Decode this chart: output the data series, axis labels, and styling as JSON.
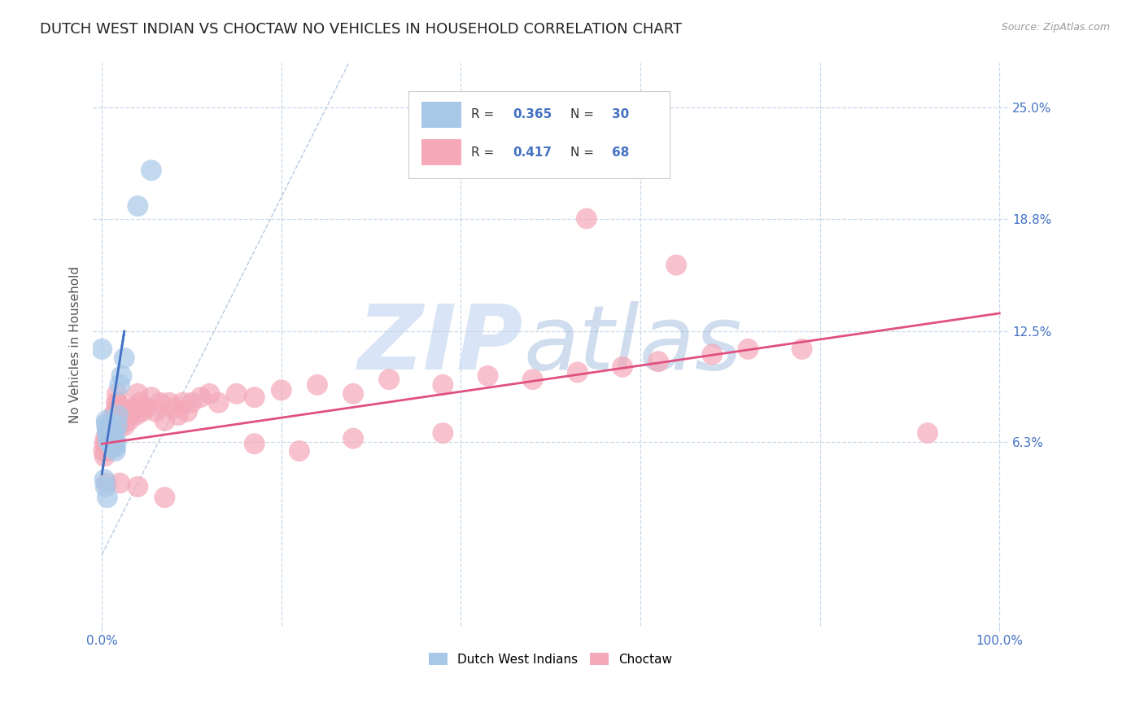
{
  "title": "DUTCH WEST INDIAN VS CHOCTAW NO VEHICLES IN HOUSEHOLD CORRELATION CHART",
  "source": "Source: ZipAtlas.com",
  "ylabel": "No Vehicles in Household",
  "y_tick_labels_right": [
    "6.3%",
    "12.5%",
    "18.8%",
    "25.0%"
  ],
  "y_tick_values_right": [
    0.063,
    0.125,
    0.188,
    0.25
  ],
  "xlim_plot": [
    -0.01,
    1.01
  ],
  "ylim_plot": [
    -0.04,
    0.275
  ],
  "dutch_color": "#a8c8e8",
  "choctaw_color": "#f4a8b8",
  "dutch_line_color": "#4472c4",
  "choctaw_line_color": "#e05080",
  "diagonal_color": "#b0c4d8",
  "background_color": "#ffffff",
  "grid_color": "#c8d8e8",
  "watermark_zip": "ZIP",
  "watermark_atlas": "atlas",
  "title_fontsize": 13,
  "label_fontsize": 11,
  "tick_color": "#4472c4",
  "dutch_scatter": [
    [
      0.0,
      0.115
    ],
    [
      0.005,
      0.075
    ],
    [
      0.005,
      0.073
    ],
    [
      0.006,
      0.07
    ],
    [
      0.006,
      0.068
    ],
    [
      0.007,
      0.072
    ],
    [
      0.007,
      0.065
    ],
    [
      0.008,
      0.068
    ],
    [
      0.008,
      0.063
    ],
    [
      0.009,
      0.066
    ],
    [
      0.009,
      0.062
    ],
    [
      0.01,
      0.07
    ],
    [
      0.01,
      0.065
    ],
    [
      0.011,
      0.068
    ],
    [
      0.011,
      0.062
    ],
    [
      0.012,
      0.068
    ],
    [
      0.012,
      0.06
    ],
    [
      0.013,
      0.065
    ],
    [
      0.013,
      0.063
    ],
    [
      0.014,
      0.068
    ],
    [
      0.015,
      0.06
    ],
    [
      0.015,
      0.058
    ],
    [
      0.016,
      0.063
    ],
    [
      0.017,
      0.072
    ],
    [
      0.018,
      0.078
    ],
    [
      0.02,
      0.095
    ],
    [
      0.022,
      0.1
    ],
    [
      0.025,
      0.11
    ],
    [
      0.04,
      0.195
    ],
    [
      0.055,
      0.215
    ],
    [
      0.003,
      0.042
    ],
    [
      0.004,
      0.038
    ],
    [
      0.006,
      0.032
    ]
  ],
  "choctaw_scatter": [
    [
      0.003,
      0.062
    ],
    [
      0.004,
      0.065
    ],
    [
      0.005,
      0.062
    ],
    [
      0.005,
      0.058
    ],
    [
      0.006,
      0.068
    ],
    [
      0.007,
      0.065
    ],
    [
      0.007,
      0.06
    ],
    [
      0.008,
      0.07
    ],
    [
      0.008,
      0.062
    ],
    [
      0.009,
      0.065
    ],
    [
      0.01,
      0.072
    ],
    [
      0.01,
      0.065
    ],
    [
      0.011,
      0.068
    ],
    [
      0.012,
      0.062
    ],
    [
      0.013,
      0.078
    ],
    [
      0.014,
      0.072
    ],
    [
      0.015,
      0.08
    ],
    [
      0.015,
      0.075
    ],
    [
      0.016,
      0.085
    ],
    [
      0.016,
      0.078
    ],
    [
      0.017,
      0.09
    ],
    [
      0.018,
      0.085
    ],
    [
      0.019,
      0.08
    ],
    [
      0.02,
      0.078
    ],
    [
      0.02,
      0.072
    ],
    [
      0.022,
      0.082
    ],
    [
      0.022,
      0.075
    ],
    [
      0.025,
      0.08
    ],
    [
      0.025,
      0.072
    ],
    [
      0.028,
      0.08
    ],
    [
      0.03,
      0.075
    ],
    [
      0.032,
      0.078
    ],
    [
      0.035,
      0.082
    ],
    [
      0.038,
      0.078
    ],
    [
      0.04,
      0.09
    ],
    [
      0.04,
      0.082
    ],
    [
      0.042,
      0.085
    ],
    [
      0.045,
      0.08
    ],
    [
      0.05,
      0.082
    ],
    [
      0.055,
      0.088
    ],
    [
      0.06,
      0.08
    ],
    [
      0.065,
      0.085
    ],
    [
      0.07,
      0.075
    ],
    [
      0.075,
      0.085
    ],
    [
      0.08,
      0.082
    ],
    [
      0.085,
      0.078
    ],
    [
      0.09,
      0.085
    ],
    [
      0.095,
      0.08
    ],
    [
      0.1,
      0.085
    ],
    [
      0.11,
      0.088
    ],
    [
      0.12,
      0.09
    ],
    [
      0.13,
      0.085
    ],
    [
      0.15,
      0.09
    ],
    [
      0.17,
      0.088
    ],
    [
      0.2,
      0.092
    ],
    [
      0.24,
      0.095
    ],
    [
      0.28,
      0.09
    ],
    [
      0.32,
      0.098
    ],
    [
      0.38,
      0.095
    ],
    [
      0.43,
      0.1
    ],
    [
      0.48,
      0.098
    ],
    [
      0.53,
      0.102
    ],
    [
      0.58,
      0.105
    ],
    [
      0.62,
      0.108
    ],
    [
      0.68,
      0.112
    ],
    [
      0.72,
      0.115
    ],
    [
      0.78,
      0.115
    ],
    [
      0.92,
      0.068
    ],
    [
      0.54,
      0.188
    ],
    [
      0.64,
      0.162
    ],
    [
      0.002,
      0.058
    ],
    [
      0.003,
      0.055
    ],
    [
      0.005,
      0.04
    ],
    [
      0.02,
      0.04
    ],
    [
      0.04,
      0.038
    ],
    [
      0.07,
      0.032
    ],
    [
      0.28,
      0.065
    ],
    [
      0.38,
      0.068
    ],
    [
      0.17,
      0.062
    ],
    [
      0.22,
      0.058
    ]
  ],
  "dutch_line": {
    "x0": 0.0,
    "y0": 0.045,
    "x1": 0.025,
    "y1": 0.125
  },
  "choctaw_line": {
    "x0": 0.0,
    "y0": 0.062,
    "x1": 1.0,
    "y1": 0.135
  }
}
